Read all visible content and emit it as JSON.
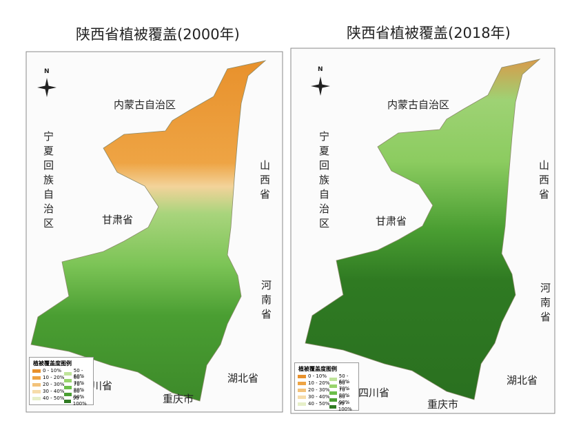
{
  "panels": [
    {
      "title": "陕西省植被覆盖(2000年)"
    },
    {
      "title": "陕西省植被覆盖(2018年)"
    }
  ],
  "north_label": "N",
  "regions": [
    "内蒙古自治区",
    "宁夏回族自治区",
    "甘肃省",
    "山西省",
    "河南省",
    "湖北省",
    "四川省",
    "重庆市"
  ],
  "legend": {
    "title": "植被覆盖度图例",
    "items": [
      {
        "label": "0 - 10%",
        "color": "#e8912c"
      },
      {
        "label": "10 - 20%",
        "color": "#eea444"
      },
      {
        "label": "20 - 30%",
        "color": "#f3c27a"
      },
      {
        "label": "30 - 40%",
        "color": "#f6dcaa"
      },
      {
        "label": "40 - 50%",
        "color": "#e6efc8"
      },
      {
        "label": "50 - 60%",
        "color": "#bfe39a"
      },
      {
        "label": "60 - 70%",
        "color": "#98d46c"
      },
      {
        "label": "70 - 80%",
        "color": "#6cbf4a"
      },
      {
        "label": "80 - 90%",
        "color": "#4a9e32"
      },
      {
        "label": "90 - 100%",
        "color": "#2f7a22"
      }
    ]
  }
}
